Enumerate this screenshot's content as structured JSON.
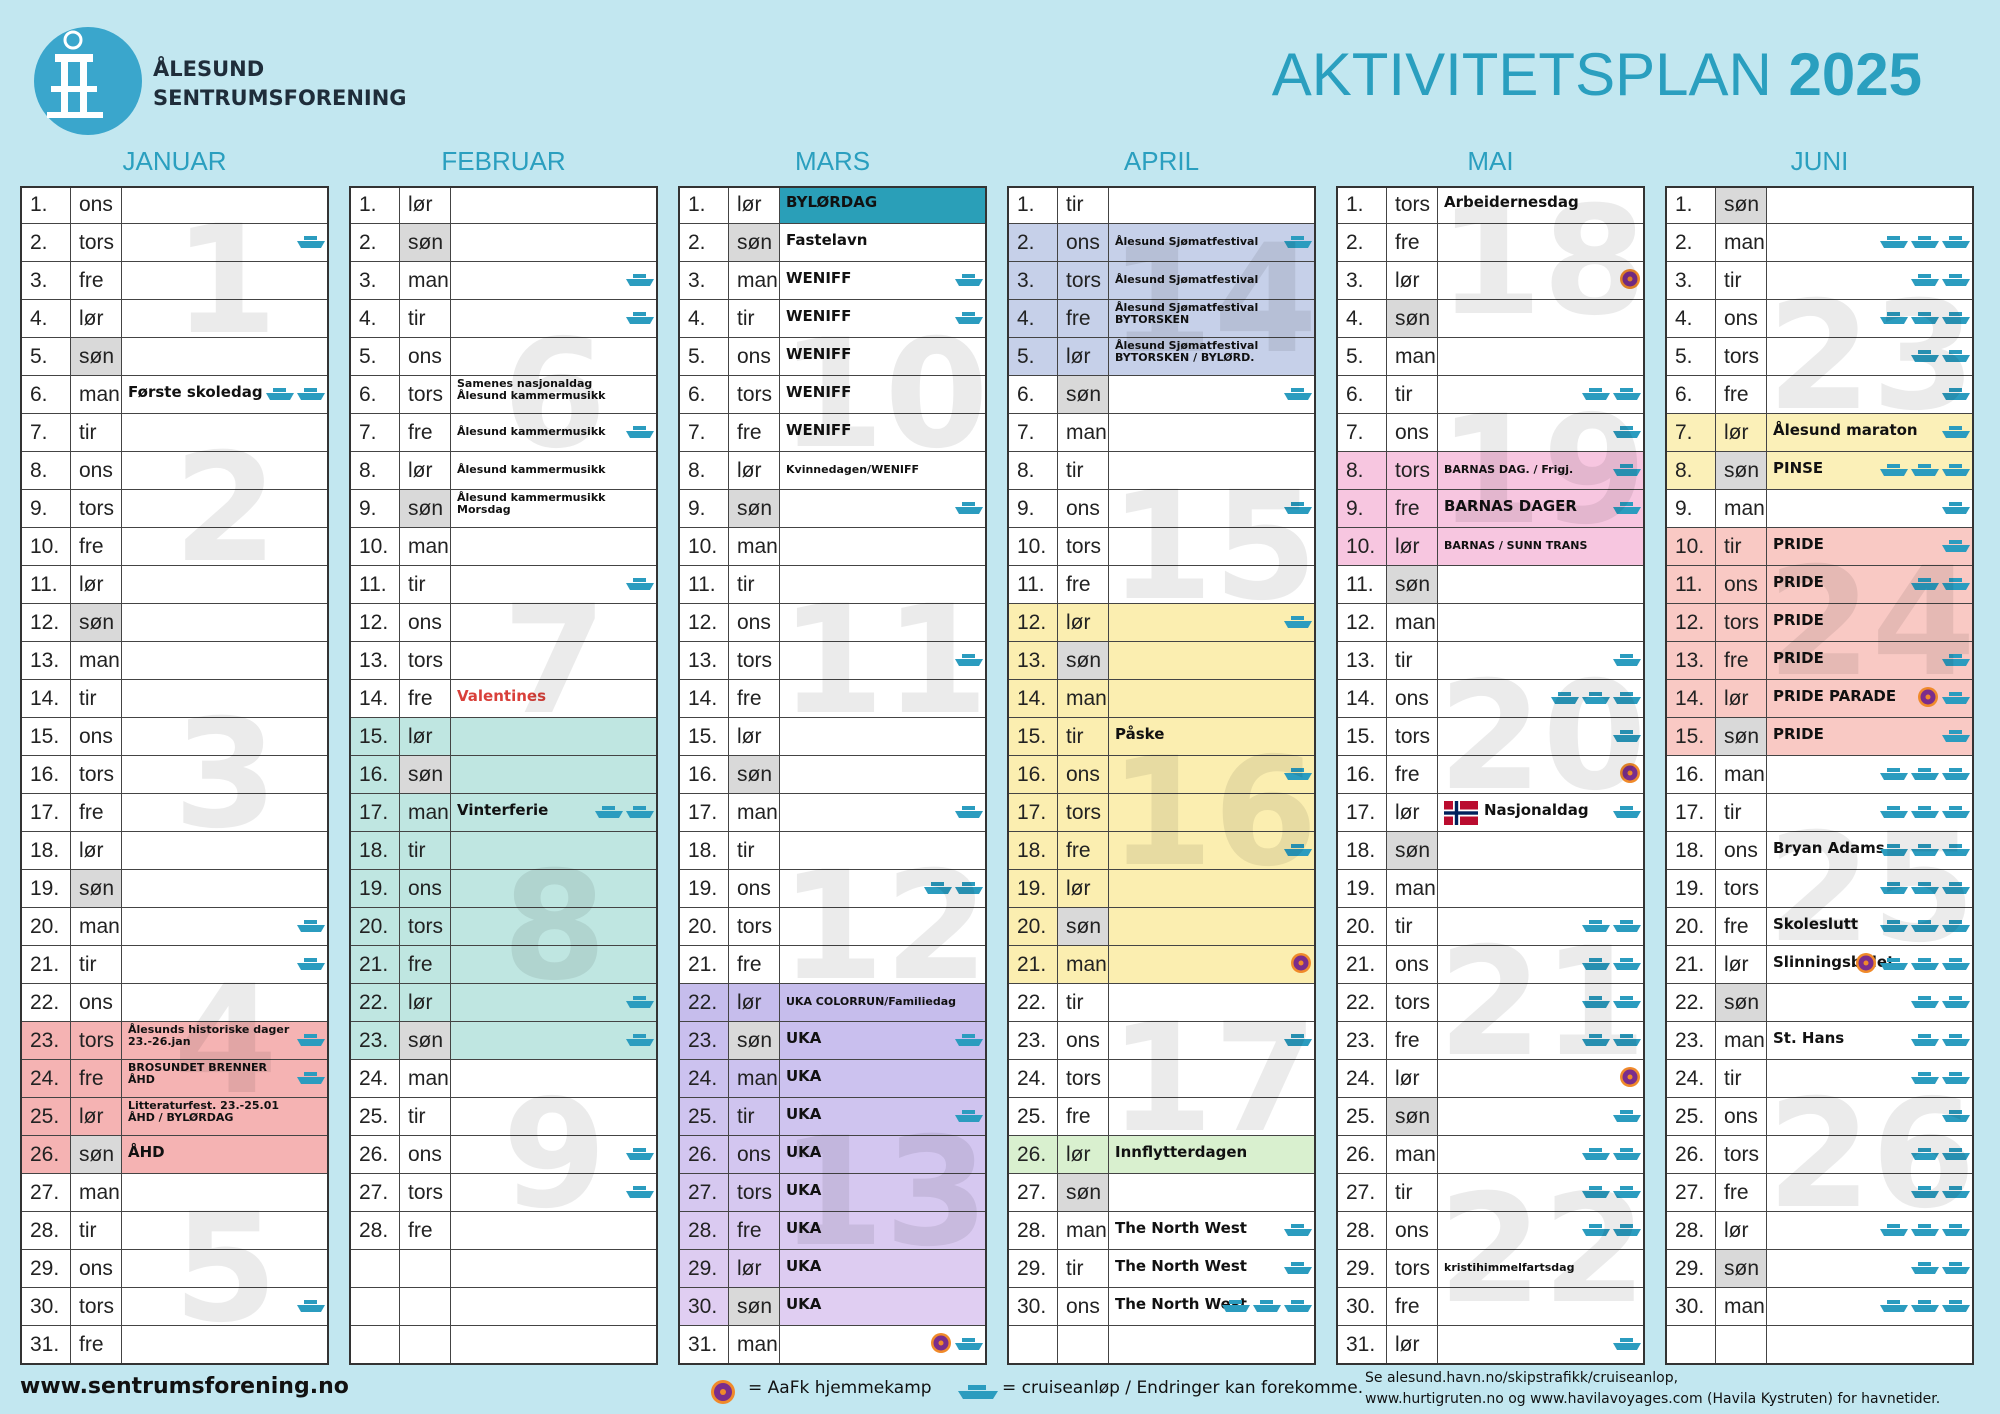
{
  "header": {
    "org_line1": "ÅLESUND",
    "org_line2": "SENTRUMSFORENING",
    "title": "AKTIVITETSPLAN",
    "year": "2025"
  },
  "months": [
    {
      "name": "JANUAR",
      "weeks": [
        "1",
        "2",
        "3",
        "4",
        "5"
      ],
      "days": [
        {
          "n": "1.",
          "wd": "ons"
        },
        {
          "n": "2.",
          "wd": "tors",
          "ships": 1
        },
        {
          "n": "3.",
          "wd": "fre"
        },
        {
          "n": "4.",
          "wd": "lør"
        },
        {
          "n": "5.",
          "wd": "søn"
        },
        {
          "n": "6.",
          "wd": "man",
          "event": "Første skoledag",
          "ships": 2
        },
        {
          "n": "7.",
          "wd": "tir"
        },
        {
          "n": "8.",
          "wd": "ons"
        },
        {
          "n": "9.",
          "wd": "tors"
        },
        {
          "n": "10.",
          "wd": "fre"
        },
        {
          "n": "11.",
          "wd": "lør"
        },
        {
          "n": "12.",
          "wd": "søn"
        },
        {
          "n": "13.",
          "wd": "man"
        },
        {
          "n": "14.",
          "wd": "tir"
        },
        {
          "n": "15.",
          "wd": "ons"
        },
        {
          "n": "16.",
          "wd": "tors"
        },
        {
          "n": "17.",
          "wd": "fre"
        },
        {
          "n": "18.",
          "wd": "lør"
        },
        {
          "n": "19.",
          "wd": "søn"
        },
        {
          "n": "20.",
          "wd": "man",
          "ships": 1
        },
        {
          "n": "21.",
          "wd": "tir",
          "ships": 1
        },
        {
          "n": "22.",
          "wd": "ons"
        },
        {
          "n": "23.",
          "wd": "tors",
          "event": "Ålesunds historiske dager\n23.-26.jan",
          "ships": 1,
          "color": "#f5b3b3"
        },
        {
          "n": "24.",
          "wd": "fre",
          "event": "BROSUNDET BRENNER\nÅHD",
          "ships": 1,
          "color": "#f5b3b3"
        },
        {
          "n": "25.",
          "wd": "lør",
          "event": "Litteraturfest. 23.-25.01\nÅHD / BYLØRDAG",
          "color": "#f5b3b3"
        },
        {
          "n": "26.",
          "wd": "søn",
          "event": "ÅHD",
          "color": "#f5b3b3"
        },
        {
          "n": "27.",
          "wd": "man"
        },
        {
          "n": "28.",
          "wd": "tir"
        },
        {
          "n": "29.",
          "wd": "ons"
        },
        {
          "n": "30.",
          "wd": "tors",
          "ships": 1
        },
        {
          "n": "31.",
          "wd": "fre"
        }
      ]
    },
    {
      "name": "FEBRUAR",
      "weeks": [
        null,
        "6",
        "7",
        "8",
        "9"
      ],
      "days": [
        {
          "n": "1.",
          "wd": "lør"
        },
        {
          "n": "2.",
          "wd": "søn"
        },
        {
          "n": "3.",
          "wd": "man",
          "ships": 1
        },
        {
          "n": "4.",
          "wd": "tir",
          "ships": 1
        },
        {
          "n": "5.",
          "wd": "ons"
        },
        {
          "n": "6.",
          "wd": "tors",
          "event": "Samenes nasjonaldag\nÅlesund kammermusikk"
        },
        {
          "n": "7.",
          "wd": "fre",
          "event": "Ålesund kammermusikk",
          "ships": 1
        },
        {
          "n": "8.",
          "wd": "lør",
          "event": "Ålesund kammermusikk"
        },
        {
          "n": "9.",
          "wd": "søn",
          "event": "Ålesund kammermusikk\nMorsdag"
        },
        {
          "n": "10.",
          "wd": "man"
        },
        {
          "n": "11.",
          "wd": "tir",
          "ships": 1
        },
        {
          "n": "12.",
          "wd": "ons"
        },
        {
          "n": "13.",
          "wd": "tors"
        },
        {
          "n": "14.",
          "wd": "fre",
          "event": "Valentines",
          "event_text_color": "#d9403a"
        },
        {
          "n": "15.",
          "wd": "lør",
          "color": "#bfe6e1"
        },
        {
          "n": "16.",
          "wd": "søn",
          "color": "#bfe6e1"
        },
        {
          "n": "17.",
          "wd": "man",
          "event": "Vinterferie",
          "ships": 2,
          "color": "#bfe6e1"
        },
        {
          "n": "18.",
          "wd": "tir",
          "color": "#bfe6e1"
        },
        {
          "n": "19.",
          "wd": "ons",
          "color": "#bfe6e1"
        },
        {
          "n": "20.",
          "wd": "tors",
          "color": "#bfe6e1"
        },
        {
          "n": "21.",
          "wd": "fre",
          "color": "#bfe6e1"
        },
        {
          "n": "22.",
          "wd": "lør",
          "ships": 1,
          "color": "#bfe6e1"
        },
        {
          "n": "23.",
          "wd": "søn",
          "ships": 1,
          "color": "#bfe6e1"
        },
        {
          "n": "24.",
          "wd": "man"
        },
        {
          "n": "25.",
          "wd": "tir"
        },
        {
          "n": "26.",
          "wd": "ons",
          "ships": 1
        },
        {
          "n": "27.",
          "wd": "tors",
          "ships": 1
        },
        {
          "n": "28.",
          "wd": "fre"
        }
      ]
    },
    {
      "name": "MARS",
      "weeks": [
        null,
        "10",
        "11",
        "12",
        "13",
        null
      ],
      "days": [
        {
          "n": "1.",
          "wd": "lør",
          "event": "BYLØRDAG",
          "event_color": "#2a9fb8"
        },
        {
          "n": "2.",
          "wd": "søn",
          "event": "Fastelavn"
        },
        {
          "n": "3.",
          "wd": "man",
          "event": "WENIFF",
          "ships": 1
        },
        {
          "n": "4.",
          "wd": "tir",
          "event": "WENIFF",
          "ships": 1
        },
        {
          "n": "5.",
          "wd": "ons",
          "event": "WENIFF"
        },
        {
          "n": "6.",
          "wd": "tors",
          "event": "WENIFF"
        },
        {
          "n": "7.",
          "wd": "fre",
          "event": "WENIFF"
        },
        {
          "n": "8.",
          "wd": "lør",
          "event": "Kvinnedagen/WENIFF"
        },
        {
          "n": "9.",
          "wd": "søn",
          "ships": 1
        },
        {
          "n": "10.",
          "wd": "man"
        },
        {
          "n": "11.",
          "wd": "tir"
        },
        {
          "n": "12.",
          "wd": "ons"
        },
        {
          "n": "13.",
          "wd": "tors",
          "ships": 1
        },
        {
          "n": "14.",
          "wd": "fre"
        },
        {
          "n": "15.",
          "wd": "lør"
        },
        {
          "n": "16.",
          "wd": "søn"
        },
        {
          "n": "17.",
          "wd": "man",
          "ships": 1
        },
        {
          "n": "18.",
          "wd": "tir"
        },
        {
          "n": "19.",
          "wd": "ons",
          "ships": 2
        },
        {
          "n": "20.",
          "wd": "tors"
        },
        {
          "n": "21.",
          "wd": "fre"
        },
        {
          "n": "22.",
          "wd": "lør",
          "event": "UKA COLORRUN/Familiedag",
          "color": "#c6bdec"
        },
        {
          "n": "23.",
          "wd": "søn",
          "event": "UKA",
          "ships": 1,
          "color": "#c9bfee"
        },
        {
          "n": "24.",
          "wd": "man",
          "event": "UKA",
          "color": "#ccc2ef"
        },
        {
          "n": "25.",
          "wd": "tir",
          "event": "UKA",
          "ships": 1,
          "color": "#cfc4ef"
        },
        {
          "n": "26.",
          "wd": "ons",
          "event": "UKA",
          "color": "#d3c6f0"
        },
        {
          "n": "27.",
          "wd": "tors",
          "event": "UKA",
          "color": "#d6c8f0"
        },
        {
          "n": "28.",
          "wd": "fre",
          "event": "UKA",
          "color": "#dacaf1"
        },
        {
          "n": "29.",
          "wd": "lør",
          "event": "UKA",
          "color": "#ddccf1"
        },
        {
          "n": "30.",
          "wd": "søn",
          "event": "UKA",
          "color": "#e0cef2"
        },
        {
          "n": "31.",
          "wd": "man",
          "ships": 1,
          "ball": true
        }
      ]
    },
    {
      "name": "APRIL",
      "weeks": [
        "14",
        "15",
        "16",
        "17",
        null
      ],
      "days": [
        {
          "n": "1.",
          "wd": "tir"
        },
        {
          "n": "2.",
          "wd": "ons",
          "event": "Ålesund Sjømatfestival",
          "ships": 1,
          "color": "#c6d0e9"
        },
        {
          "n": "3.",
          "wd": "tors",
          "event": "Ålesund Sjømatfestival",
          "color": "#c6d0e9"
        },
        {
          "n": "4.",
          "wd": "fre",
          "event": "Ålesund Sjømatfestival\nBYTORSKEN",
          "color": "#c6d0e9"
        },
        {
          "n": "5.",
          "wd": "lør",
          "event": "Ålesund Sjømatfestival\nBYTORSKEN / BYLØRD.",
          "color": "#c6d0e9"
        },
        {
          "n": "6.",
          "wd": "søn",
          "ships": 1
        },
        {
          "n": "7.",
          "wd": "man"
        },
        {
          "n": "8.",
          "wd": "tir"
        },
        {
          "n": "9.",
          "wd": "ons",
          "ships": 1
        },
        {
          "n": "10.",
          "wd": "tors"
        },
        {
          "n": "11.",
          "wd": "fre"
        },
        {
          "n": "12.",
          "wd": "lør",
          "ships": 1,
          "color": "#fbeeb0"
        },
        {
          "n": "13.",
          "wd": "søn",
          "color": "#fbeeb0"
        },
        {
          "n": "14.",
          "wd": "man",
          "color": "#fbeeb0"
        },
        {
          "n": "15.",
          "wd": "tir",
          "event": "Påske",
          "color": "#fbeeb0"
        },
        {
          "n": "16.",
          "wd": "ons",
          "ships": 1,
          "color": "#fbeeb0"
        },
        {
          "n": "17.",
          "wd": "tors",
          "color": "#fbeeb0"
        },
        {
          "n": "18.",
          "wd": "fre",
          "ships": 1,
          "color": "#fbeeb0"
        },
        {
          "n": "19.",
          "wd": "lør",
          "color": "#fbeeb0"
        },
        {
          "n": "20.",
          "wd": "søn",
          "color": "#fbeeb0"
        },
        {
          "n": "21.",
          "wd": "man",
          "ball": true,
          "color": "#fbeeb0"
        },
        {
          "n": "22.",
          "wd": "tir"
        },
        {
          "n": "23.",
          "wd": "ons",
          "ships": 1
        },
        {
          "n": "24.",
          "wd": "tors"
        },
        {
          "n": "25.",
          "wd": "fre"
        },
        {
          "n": "26.",
          "wd": "lør",
          "event": "Innflytterdagen",
          "color": "#d9f0cf"
        },
        {
          "n": "27.",
          "wd": "søn"
        },
        {
          "n": "28.",
          "wd": "man",
          "event": "The North West",
          "ships": 1
        },
        {
          "n": "29.",
          "wd": "tir",
          "event": "The North West",
          "ships": 1
        },
        {
          "n": "30.",
          "wd": "ons",
          "event": "The North West",
          "ships": 3
        }
      ]
    },
    {
      "name": "MAI",
      "weeks": [
        "18",
        "19",
        "20",
        "21",
        "22"
      ],
      "days": [
        {
          "n": "1.",
          "wd": "tors",
          "event": "Arbeidernesdag"
        },
        {
          "n": "2.",
          "wd": "fre"
        },
        {
          "n": "3.",
          "wd": "lør",
          "ball": true
        },
        {
          "n": "4.",
          "wd": "søn"
        },
        {
          "n": "5.",
          "wd": "man"
        },
        {
          "n": "6.",
          "wd": "tir",
          "ships": 2
        },
        {
          "n": "7.",
          "wd": "ons",
          "ships": 1
        },
        {
          "n": "8.",
          "wd": "tors",
          "event": "BARNAS DAG. / Frigj.",
          "ships": 1,
          "color": "#f7c6e0"
        },
        {
          "n": "9.",
          "wd": "fre",
          "event": "BARNAS DAGER",
          "ships": 1,
          "color": "#f7c6e0"
        },
        {
          "n": "10.",
          "wd": "lør",
          "event": "BARNAS / SUNN TRANS",
          "color": "#f7c6e0"
        },
        {
          "n": "11.",
          "wd": "søn"
        },
        {
          "n": "12.",
          "wd": "man"
        },
        {
          "n": "13.",
          "wd": "tir",
          "ships": 1
        },
        {
          "n": "14.",
          "wd": "ons",
          "ships": 3
        },
        {
          "n": "15.",
          "wd": "tors",
          "ships": 1
        },
        {
          "n": "16.",
          "wd": "fre",
          "ball": true
        },
        {
          "n": "17.",
          "wd": "lør",
          "event": "Nasjonaldag",
          "flag": true,
          "ships": 1
        },
        {
          "n": "18.",
          "wd": "søn"
        },
        {
          "n": "19.",
          "wd": "man"
        },
        {
          "n": "20.",
          "wd": "tir",
          "ships": 2
        },
        {
          "n": "21.",
          "wd": "ons",
          "ships": 2
        },
        {
          "n": "22.",
          "wd": "tors",
          "ships": 2
        },
        {
          "n": "23.",
          "wd": "fre",
          "ships": 2
        },
        {
          "n": "24.",
          "wd": "lør",
          "ball": true
        },
        {
          "n": "25.",
          "wd": "søn",
          "ships": 1
        },
        {
          "n": "26.",
          "wd": "man",
          "ships": 2
        },
        {
          "n": "27.",
          "wd": "tir",
          "ships": 2
        },
        {
          "n": "28.",
          "wd": "ons",
          "ships": 2
        },
        {
          "n": "29.",
          "wd": "tors",
          "event": "kristihimmelfartsdag"
        },
        {
          "n": "30.",
          "wd": "fre"
        },
        {
          "n": "31.",
          "wd": "lør",
          "ships": 1
        }
      ]
    },
    {
      "name": "JUNI",
      "weeks": [
        null,
        "23",
        "24",
        "25",
        "26",
        null
      ],
      "days": [
        {
          "n": "1.",
          "wd": "søn"
        },
        {
          "n": "2.",
          "wd": "man",
          "ships": 3
        },
        {
          "n": "3.",
          "wd": "tir",
          "ships": 2
        },
        {
          "n": "4.",
          "wd": "ons",
          "ships": 3
        },
        {
          "n": "5.",
          "wd": "tors",
          "ships": 2
        },
        {
          "n": "6.",
          "wd": "fre",
          "ships": 1
        },
        {
          "n": "7.",
          "wd": "lør",
          "event": "Ålesund maraton",
          "ships": 1,
          "color": "#fbf0b8"
        },
        {
          "n": "8.",
          "wd": "søn",
          "event": "PINSE",
          "ships": 3,
          "color": "#fbf0b8"
        },
        {
          "n": "9.",
          "wd": "man",
          "ships": 1
        },
        {
          "n": "10.",
          "wd": "tir",
          "event": "PRIDE",
          "ships": 1,
          "color": "#f9c9c4"
        },
        {
          "n": "11.",
          "wd": "ons",
          "event": "PRIDE",
          "ships": 2,
          "color": "#f9c9c4"
        },
        {
          "n": "12.",
          "wd": "tors",
          "event": "PRIDE",
          "color": "#f9c9c4"
        },
        {
          "n": "13.",
          "wd": "fre",
          "event": "PRIDE",
          "ships": 1,
          "color": "#f9c9c4"
        },
        {
          "n": "14.",
          "wd": "lør",
          "event": "PRIDE PARADE",
          "ball": true,
          "ships": 1,
          "color": "#f9c9c4"
        },
        {
          "n": "15.",
          "wd": "søn",
          "event": "PRIDE",
          "ships": 1,
          "color": "#f9c9c4"
        },
        {
          "n": "16.",
          "wd": "man",
          "ships": 3
        },
        {
          "n": "17.",
          "wd": "tir",
          "ships": 3
        },
        {
          "n": "18.",
          "wd": "ons",
          "event": "Bryan Adams",
          "ships": 3
        },
        {
          "n": "19.",
          "wd": "tors",
          "ships": 3
        },
        {
          "n": "20.",
          "wd": "fre",
          "event": "Skoleslutt",
          "ships": 3
        },
        {
          "n": "21.",
          "wd": "lør",
          "event": "Slinningsbålet",
          "ships": 3,
          "ball": true
        },
        {
          "n": "22.",
          "wd": "søn",
          "ships": 2
        },
        {
          "n": "23.",
          "wd": "man",
          "event": "St. Hans",
          "ships": 2
        },
        {
          "n": "24.",
          "wd": "tir",
          "ships": 2
        },
        {
          "n": "25.",
          "wd": "ons",
          "ships": 1
        },
        {
          "n": "26.",
          "wd": "tors",
          "ships": 2
        },
        {
          "n": "27.",
          "wd": "fre",
          "ships": 2
        },
        {
          "n": "28.",
          "wd": "lør",
          "ships": 3
        },
        {
          "n": "29.",
          "wd": "søn",
          "ships": 2
        },
        {
          "n": "30.",
          "wd": "man",
          "ships": 3
        }
      ]
    }
  ],
  "footer": {
    "website": "www.sentrumsforening.no",
    "ball_legend": "= AaFk hjemmekamp",
    "ship_legend": "= cruiseanløp / Endringer kan forekomme.",
    "note_line1": "Se alesund.havn.no/skipstrafikk/cruiseanlop,",
    "note_line2": "www.hurtigruten.no og www.havilavoyages.com (Havila Kystruten) for havnetider."
  }
}
